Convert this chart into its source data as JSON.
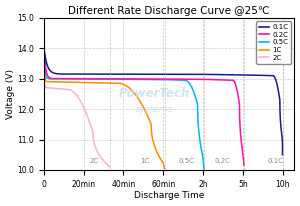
{
  "title": "Different Rate Discharge Curve @25℃",
  "xlabel": "Discharge Time",
  "ylabel": "Voltage (V)",
  "ylim": [
    10.0,
    15.0
  ],
  "yticks": [
    10.0,
    11.0,
    12.0,
    13.0,
    14.0,
    15.0
  ],
  "xtick_labels": [
    "0",
    "20min",
    "40min",
    "60min",
    "2h",
    "5h",
    "10h"
  ],
  "xtick_minutes": [
    0,
    20,
    40,
    60,
    120,
    300,
    600
  ],
  "colors": {
    "0.1C": "#1a1a8c",
    "0.2C": "#ff10a0",
    "0.5C": "#00b0f0",
    "1C": "#ff8c00",
    "2C": "#ffb0c8"
  },
  "background_color": "#ffffff",
  "grid_color": "#c8c8c8",
  "watermark_color_pt": "#b8d8f0",
  "watermark_color_sys": "#b8d8b8"
}
